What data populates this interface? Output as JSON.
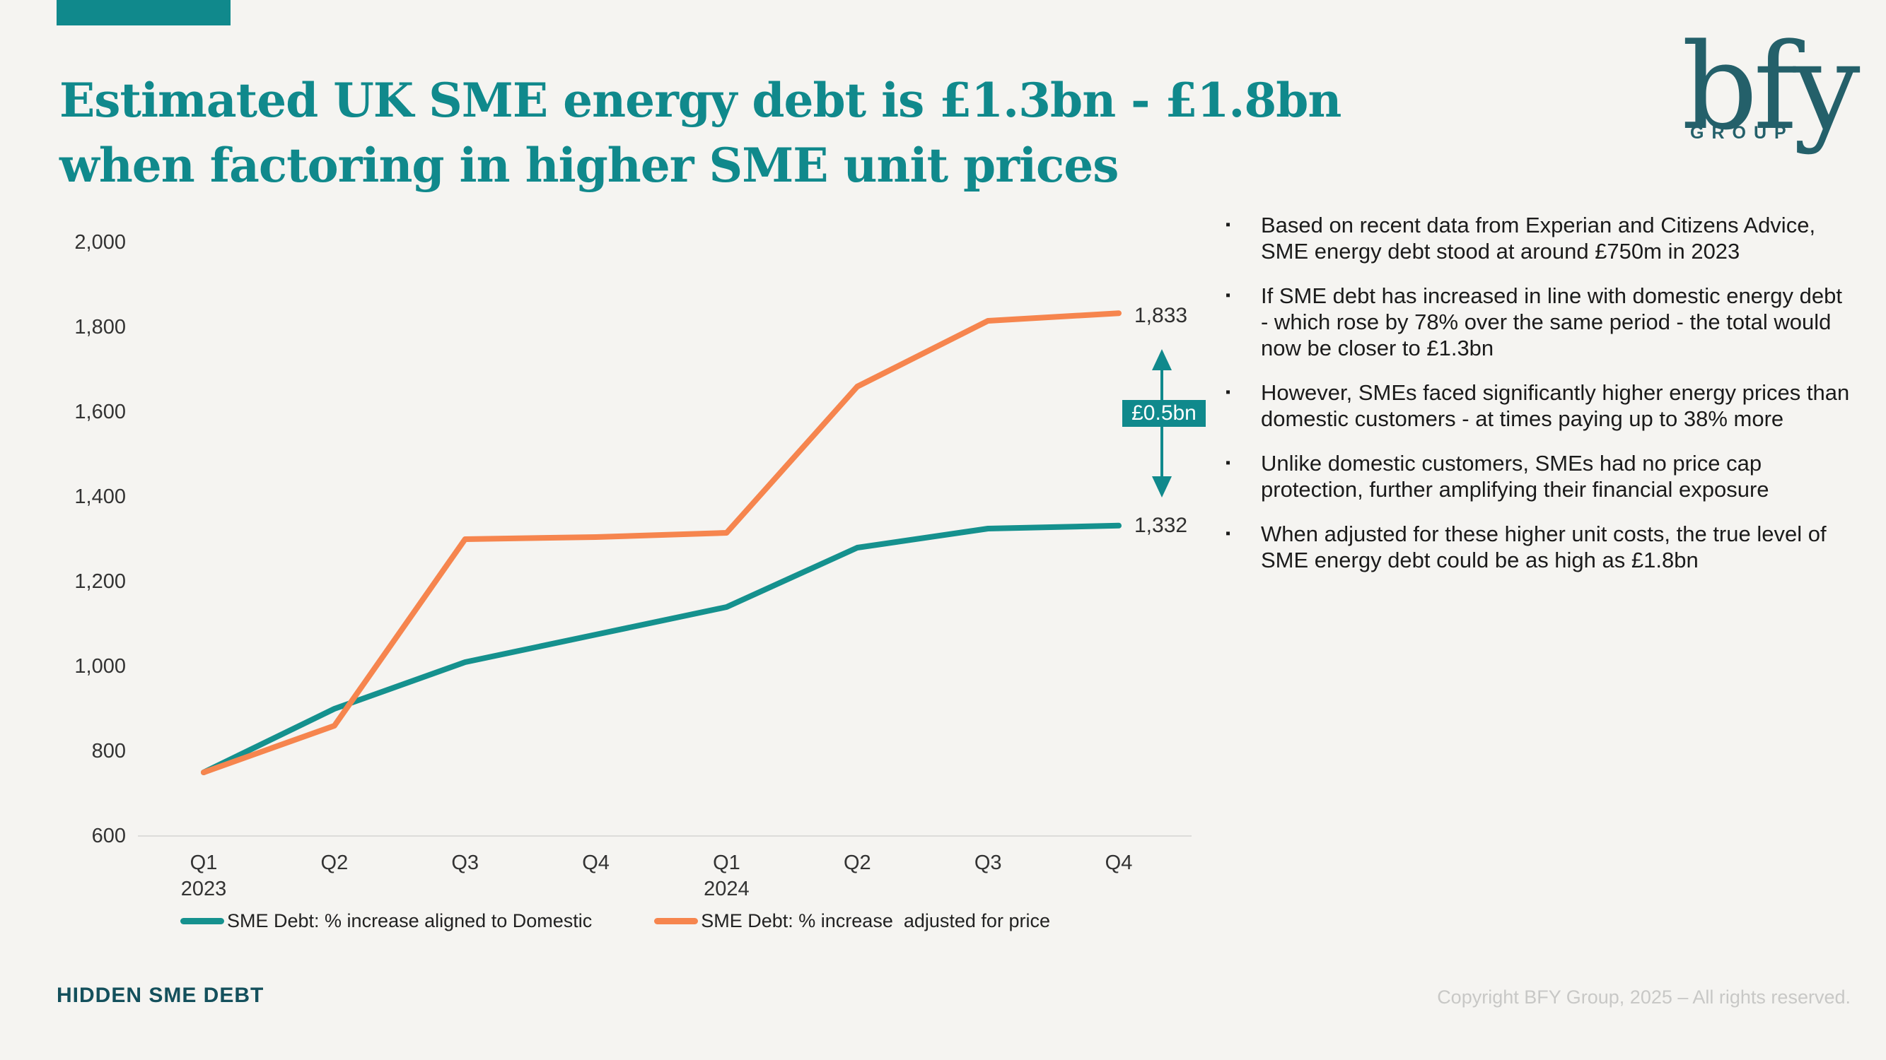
{
  "slide": {
    "title_line1": "Estimated UK SME energy debt is £1.3bn - £1.8bn",
    "title_line2": "when factoring in higher SME unit prices",
    "accent_color": "#10898c"
  },
  "logo": {
    "text": "bfy",
    "subtext": "GROUP"
  },
  "chart_data": {
    "type": "line",
    "categories": [
      "Q1",
      "Q2",
      "Q3",
      "Q4",
      "Q1",
      "Q2",
      "Q3",
      "Q4"
    ],
    "category_years": [
      {
        "index": 0,
        "label": "2023"
      },
      {
        "index": 4,
        "label": "2024"
      }
    ],
    "series": [
      {
        "name": "SME Debt: % increase aligned to Domestic",
        "color": "#15918e",
        "values": [
          750,
          900,
          1010,
          1075,
          1140,
          1280,
          1325,
          1332
        ]
      },
      {
        "name": "SME Debt: % increase  adjusted for price",
        "color": "#f6854e",
        "values": [
          750,
          860,
          1300,
          1305,
          1315,
          1660,
          1815,
          1833
        ]
      }
    ],
    "ylim": [
      600,
      2000
    ],
    "ytick_step": 200,
    "grid": false,
    "legend_position": "bottom",
    "annotations": {
      "top_value_label": "1,833",
      "bottom_value_label": "1,332",
      "delta_label": "£0.5bn",
      "delta_color": "#10898c"
    }
  },
  "bullets": {
    "marker": "▪",
    "items": [
      "Based on recent data from Experian and Citizens Advice, SME energy debt stood at around £750m in 2023",
      "If SME debt has increased in line with domestic energy debt - which rose by 78% over the same period - the total would now be closer to £1.3bn",
      "However, SMEs faced significantly higher energy prices than domestic customers - at times paying up to 38% more",
      "Unlike domestic customers, SMEs had no price cap protection, further amplifying their financial exposure",
      "When adjusted for these higher unit costs, the true level of SME energy debt could be as high as £1.8bn"
    ]
  },
  "footer": {
    "left": "HIDDEN SME DEBT",
    "right": "Copyright BFY Group, 2025 – All rights reserved."
  }
}
